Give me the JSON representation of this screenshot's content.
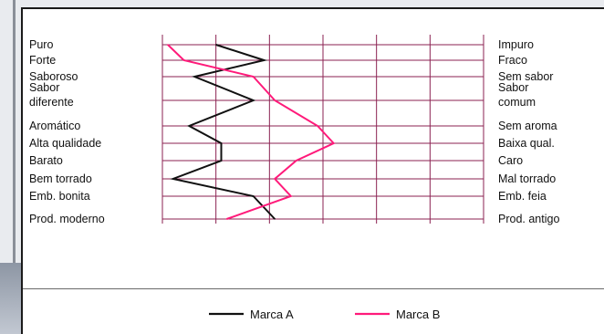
{
  "colors": {
    "grid": "#8b2252",
    "series_a": "#111111",
    "series_b": "#ff1a7a"
  },
  "chart_data": {
    "type": "line",
    "orientation": "semantic-differential",
    "scale_points": 7,
    "xlim": [
      1,
      7
    ],
    "attributes": [
      {
        "left": "Puro",
        "right": "Impuro"
      },
      {
        "left": "Forte",
        "right": "Fraco"
      },
      {
        "left": "Saboroso",
        "right": "Sem sabor"
      },
      {
        "left": "Sabor diferente",
        "left_lines": [
          "Sabor",
          "diferente"
        ],
        "right": "Sabor comum",
        "right_lines": [
          "Sabor",
          "comum"
        ]
      },
      {
        "left": "Aromático",
        "right": "Sem aroma"
      },
      {
        "left": "Alta qualidade",
        "right": "Baixa qual."
      },
      {
        "left": "Barato",
        "right": "Caro"
      },
      {
        "left": "Bem torrado",
        "right": "Mal torrado"
      },
      {
        "left": "Emb. bonita",
        "right": "Emb. feia"
      },
      {
        "left": "Prod. moderno",
        "right": "Prod. antigo"
      }
    ],
    "series": [
      {
        "name": "Marca A",
        "values": [
          2.0,
          2.9,
          1.6,
          2.7,
          1.5,
          2.1,
          2.1,
          1.2,
          2.7,
          3.1
        ]
      },
      {
        "name": "Marca B",
        "values": [
          1.1,
          1.4,
          2.7,
          3.1,
          3.9,
          4.2,
          3.5,
          3.1,
          3.4,
          2.2
        ]
      }
    ],
    "legend": {
      "position": "bottom",
      "items": [
        "Marca A",
        "Marca B"
      ]
    }
  }
}
